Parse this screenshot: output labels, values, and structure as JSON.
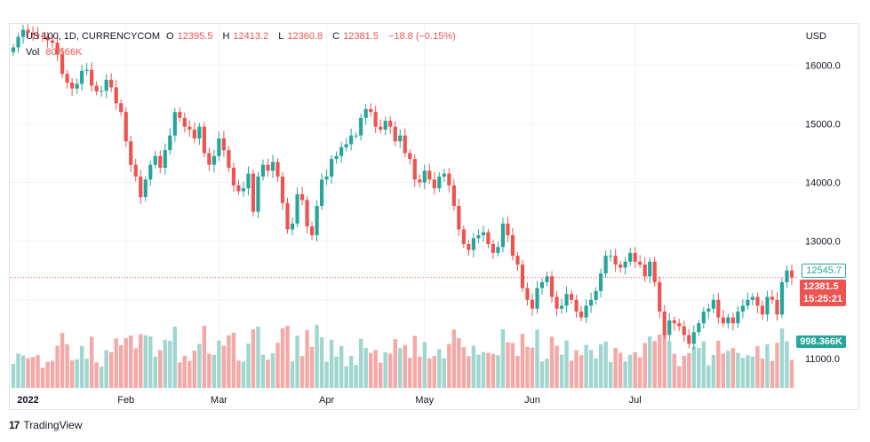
{
  "header": {
    "symbol": "US 100, 1D, CURRENCYCOM",
    "open_label": "O",
    "open": "12395.5",
    "high_label": "H",
    "high": "12413.2",
    "low_label": "L",
    "low": "12360.8",
    "close_label": "C",
    "close": "12381.5",
    "change": "−18.8 (−0.15%)",
    "vol_label": "Vol",
    "vol": "80.566K",
    "currency": "USD"
  },
  "price_tags": {
    "last_label": "12545.7",
    "current": "12381.5",
    "countdown": "15:25:21",
    "volume": "998.366K"
  },
  "footer": {
    "brand": "TradingView",
    "logo_glyph": "17"
  },
  "colors": {
    "up": "#26a69a",
    "down": "#ef5350",
    "up_vol": "#9fd6cf",
    "down_vol": "#f5a9a7",
    "grid": "#f0f3fa"
  },
  "chart_data": {
    "type": "candlestick",
    "ylim": [
      10500,
      16700
    ],
    "y_ticks": [
      11000,
      12000,
      13000,
      14000,
      15000,
      16000
    ],
    "y_tick_labels": [
      "11000.0",
      "12000.0",
      "13000.0",
      "14000.0",
      "15000.0",
      "16000.0"
    ],
    "x_labels": [
      {
        "label": "2022",
        "index": 3
      },
      {
        "label": "Feb",
        "index": 23
      },
      {
        "label": "Mar",
        "index": 42
      },
      {
        "label": "Apr",
        "index": 64
      },
      {
        "label": "May",
        "index": 84
      },
      {
        "label": "Jun",
        "index": 106
      },
      {
        "label": "Jul",
        "index": 127
      }
    ],
    "close": [
      16300,
      16480,
      16600,
      16550,
      16520,
      16500,
      16480,
      16420,
      16380,
      16180,
      15850,
      15700,
      15600,
      15680,
      15900,
      15920,
      15650,
      15550,
      15560,
      15750,
      15620,
      15350,
      15200,
      14700,
      14300,
      14100,
      13750,
      14050,
      14300,
      14450,
      14250,
      14550,
      14800,
      15200,
      15100,
      14950,
      14900,
      14750,
      14950,
      14500,
      14300,
      14450,
      14750,
      14550,
      14250,
      13950,
      13850,
      13900,
      14150,
      13500,
      14100,
      14300,
      14200,
      14350,
      14100,
      13650,
      13200,
      13300,
      13800,
      13700,
      13250,
      13100,
      13600,
      14050,
      14100,
      14400,
      14450,
      14600,
      14650,
      14800,
      14800,
      15100,
      15250,
      15200,
      14950,
      14900,
      15050,
      14950,
      14700,
      14800,
      14500,
      14400,
      14050,
      14000,
      14200,
      14050,
      13900,
      14100,
      14150,
      13950,
      13600,
      13200,
      12950,
      12850,
      13050,
      13100,
      13150,
      12950,
      12800,
      12900,
      13300,
      13100,
      12750,
      12600,
      12200,
      12000,
      11850,
      12200,
      12300,
      12400,
      12050,
      11850,
      11900,
      12100,
      12000,
      11800,
      11700,
      11900,
      12000,
      12150,
      12450,
      12750,
      12750,
      12600,
      12550,
      12650,
      12800,
      12650,
      12600,
      12400,
      12650,
      12300,
      11800,
      11400,
      11650,
      11600,
      11550,
      11400,
      11250,
      11450,
      11600,
      11800,
      11850,
      12000,
      11700,
      11600,
      11700,
      11600,
      11800,
      11900,
      12000,
      12050,
      11900,
      11750,
      12050,
      12000,
      11750,
      12300,
      12500,
      12381.5
    ],
    "volume_scale": 1500
  }
}
